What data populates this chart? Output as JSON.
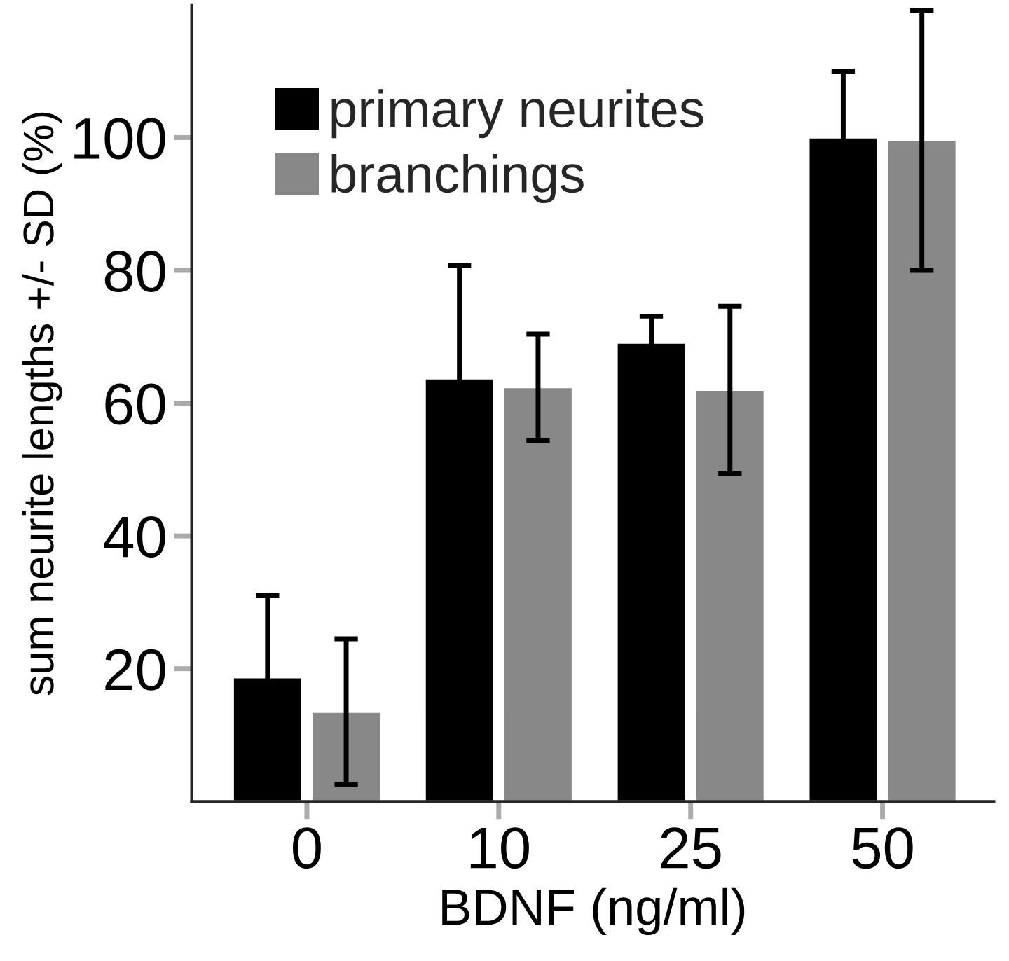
{
  "chart_data": {
    "type": "bar",
    "xlabel": "BDNF (ng/ml)",
    "ylabel": "sum neurite lengths +/- SD (%)",
    "categories": [
      "0",
      "10",
      "25",
      "50"
    ],
    "series": [
      {
        "name": "primary neurites",
        "color": "#000000",
        "values": [
          18.7,
          63.7,
          69.1,
          100
        ],
        "errors": [
          12.3,
          17,
          4,
          10
        ]
      },
      {
        "name": "branchings",
        "color": "#888888",
        "values": [
          13.5,
          62.4,
          62.0,
          99.6
        ],
        "errors": [
          11,
          8,
          12.6,
          19.6
        ]
      }
    ],
    "ylim": [
      0,
      120
    ],
    "yticks": [
      20,
      40,
      60,
      80,
      100
    ],
    "grid": false,
    "legend": "top left"
  }
}
